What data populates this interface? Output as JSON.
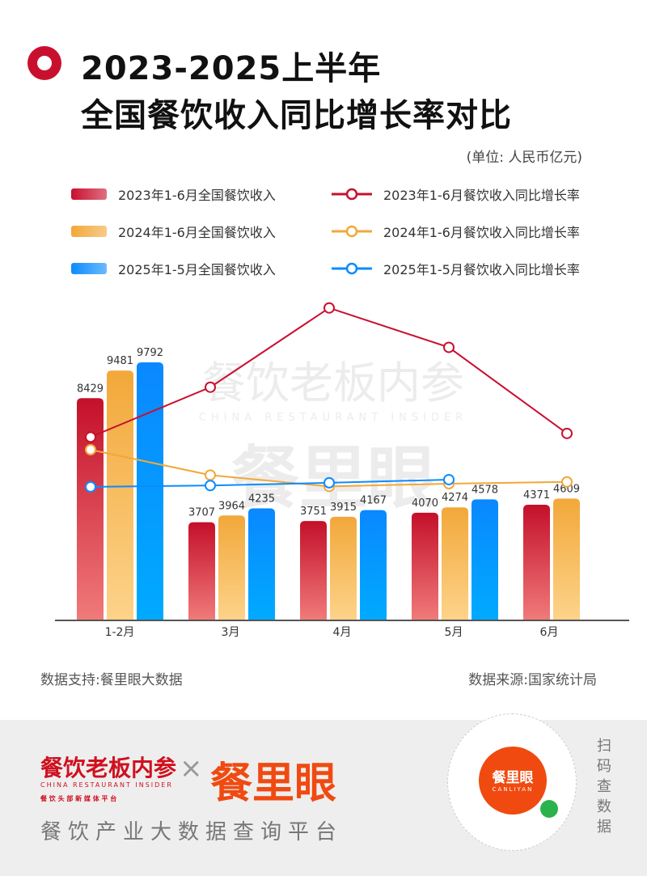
{
  "title_line1": "2023-2025上半年",
  "title_line2": "全国餐饮收入同比增长率对比",
  "unit": "(单位: 人民币亿元)",
  "source_left": "数据支持:餐里眼大数据",
  "source_right": "数据来源:国家统计局",
  "watermark": {
    "cn": "餐饮老板内参",
    "en": "CHINA RESTAURANT INSIDER",
    "brand": "餐里眼"
  },
  "footer": {
    "logo1": "餐饮老板内参",
    "logo1_en": "CHINA RESTAURANT INSIDER",
    "logo1_sub": "餐 饮 头 部 新 媒 体 平 台",
    "times": "×",
    "logo2": "餐里眼",
    "slogan": "餐饮产业大数据查询平台",
    "qr_brand": "餐里眼",
    "qr_en": "CANLIYAN",
    "scan": "扫码查数据"
  },
  "colors": {
    "red": "#c8102e",
    "yellow": "#f2a83a",
    "blue": "#0a8cff"
  },
  "chart_data": {
    "type": "bar+line",
    "categories": [
      "1-2月",
      "3月",
      "4月",
      "5月",
      "6月"
    ],
    "ylim": [
      0,
      9792
    ],
    "bar_series": [
      {
        "name": "2023年1-6月全国餐饮收入",
        "color": "red",
        "values": [
          8429,
          3707,
          3751,
          4070,
          4371
        ]
      },
      {
        "name": "2024年1-6月全国餐饮收入",
        "color": "yellow",
        "values": [
          9481,
          3964,
          3915,
          4274,
          4609
        ]
      },
      {
        "name": "2025年1-5月全国餐饮收入",
        "color": "blue",
        "values": [
          9792,
          4235,
          4167,
          4578,
          null
        ]
      }
    ],
    "line_series": [
      {
        "name": "2023年1-6月餐饮收入同比增长率",
        "color": "red",
        "unit": "%",
        "values": [
          15.3,
          26.3,
          43.8,
          35.1,
          16.1
        ]
      },
      {
        "name": "2024年1-6月餐饮收入同比增长率",
        "color": "yellow",
        "unit": "%",
        "values": [
          12.5,
          6.9,
          4.4,
          5.0,
          5.4
        ]
      },
      {
        "name": "2025年1-5月餐饮收入同比增长率",
        "color": "blue",
        "unit": "%",
        "values": [
          4.3,
          4.6,
          5.2,
          5.9,
          null
        ]
      }
    ],
    "line_ylim": [
      0,
      45
    ]
  }
}
